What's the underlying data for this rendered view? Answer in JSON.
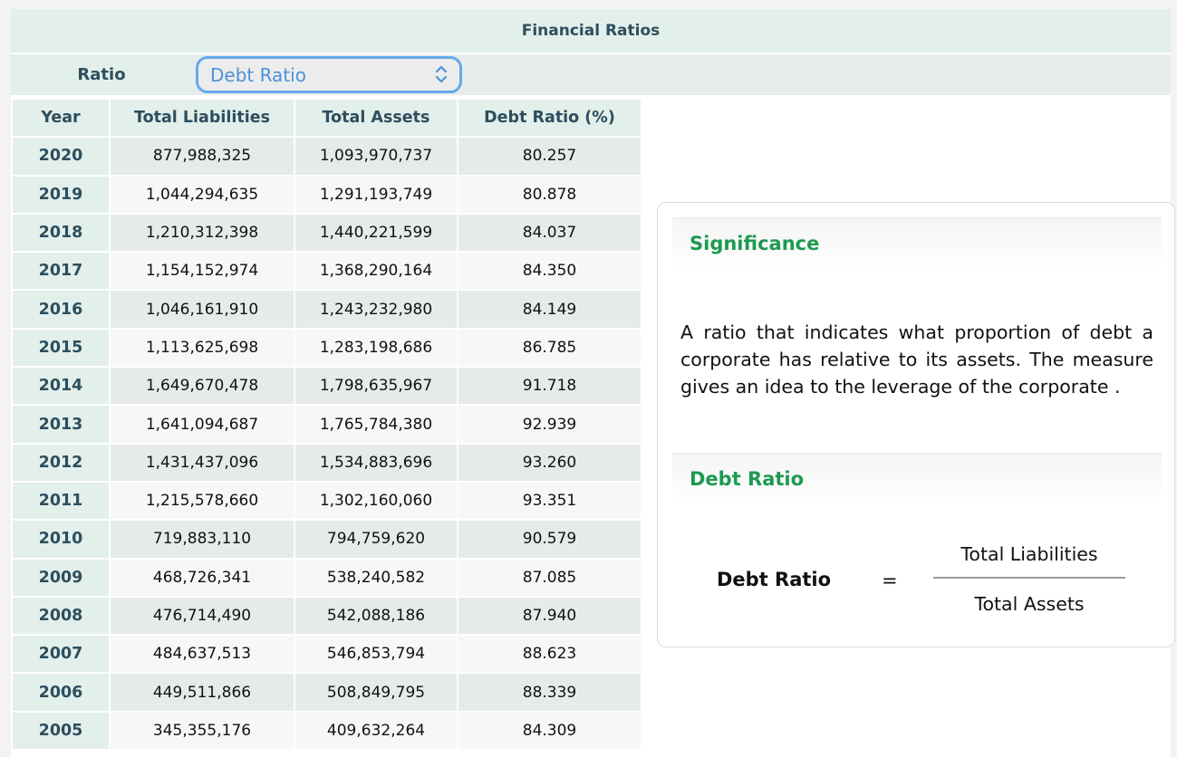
{
  "header": {
    "title": "Financial Ratios"
  },
  "selector": {
    "label": "Ratio",
    "selected": "Debt Ratio"
  },
  "table": {
    "columns": [
      "Year",
      "Total Liabilities",
      "Total Assets",
      "Debt Ratio (%)"
    ],
    "rows": [
      {
        "year": "2020",
        "liabilities": "877,988,325",
        "assets": "1,093,970,737",
        "ratio": "80.257"
      },
      {
        "year": "2019",
        "liabilities": "1,044,294,635",
        "assets": "1,291,193,749",
        "ratio": "80.878"
      },
      {
        "year": "2018",
        "liabilities": "1,210,312,398",
        "assets": "1,440,221,599",
        "ratio": "84.037"
      },
      {
        "year": "2017",
        "liabilities": "1,154,152,974",
        "assets": "1,368,290,164",
        "ratio": "84.350"
      },
      {
        "year": "2016",
        "liabilities": "1,046,161,910",
        "assets": "1,243,232,980",
        "ratio": "84.149"
      },
      {
        "year": "2015",
        "liabilities": "1,113,625,698",
        "assets": "1,283,198,686",
        "ratio": "86.785"
      },
      {
        "year": "2014",
        "liabilities": "1,649,670,478",
        "assets": "1,798,635,967",
        "ratio": "91.718"
      },
      {
        "year": "2013",
        "liabilities": "1,641,094,687",
        "assets": "1,765,784,380",
        "ratio": "92.939"
      },
      {
        "year": "2012",
        "liabilities": "1,431,437,096",
        "assets": "1,534,883,696",
        "ratio": "93.260"
      },
      {
        "year": "2011",
        "liabilities": "1,215,578,660",
        "assets": "1,302,160,060",
        "ratio": "93.351"
      },
      {
        "year": "2010",
        "liabilities": "719,883,110",
        "assets": "794,759,620",
        "ratio": "90.579"
      },
      {
        "year": "2009",
        "liabilities": "468,726,341",
        "assets": "538,240,582",
        "ratio": "87.085"
      },
      {
        "year": "2008",
        "liabilities": "476,714,490",
        "assets": "542,088,186",
        "ratio": "87.940"
      },
      {
        "year": "2007",
        "liabilities": "484,637,513",
        "assets": "546,853,794",
        "ratio": "88.623"
      },
      {
        "year": "2006",
        "liabilities": "449,511,866",
        "assets": "508,849,795",
        "ratio": "88.339"
      },
      {
        "year": "2005",
        "liabilities": "345,355,176",
        "assets": "409,632,264",
        "ratio": "84.309"
      }
    ]
  },
  "info": {
    "significance_title": "Significance",
    "significance_text": "A ratio that indicates what proportion of debt a corporate has relative to its assets. The measure gives an idea to the leverage of the corporate .",
    "formula_title": "Debt Ratio",
    "formula": {
      "name": "Debt Ratio",
      "equals": "=",
      "numerator": "Total Liabilities",
      "denominator": "Total Assets"
    }
  },
  "colors": {
    "header_bg": "#e2efeb",
    "header_text": "#2d4e5e",
    "select_accent": "#64a9ec",
    "section_title": "#1e9a50"
  }
}
